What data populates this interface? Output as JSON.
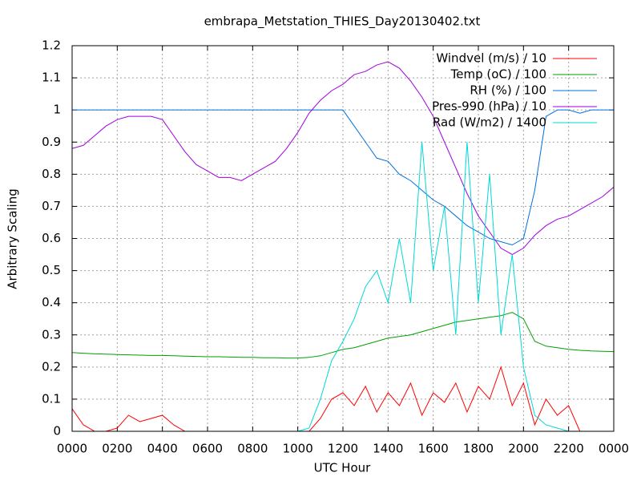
{
  "chart_data": {
    "type": "line",
    "title": "embrapa_Metstation_THIES_Day20130402.txt",
    "xlabel": "UTC Hour",
    "ylabel": "Arbitrary Scaling",
    "x": [
      0,
      0.5,
      1,
      1.5,
      2,
      2.5,
      3,
      3.5,
      4,
      4.5,
      5,
      5.5,
      6,
      6.5,
      7,
      7.5,
      8,
      8.5,
      9,
      9.5,
      10,
      10.5,
      11,
      11.5,
      12,
      12.5,
      13,
      13.5,
      14,
      14.5,
      15,
      15.5,
      16,
      16.5,
      17,
      17.5,
      18,
      18.5,
      19,
      19.5,
      20,
      20.5,
      21,
      21.5,
      22,
      22.5,
      23,
      23.5,
      24
    ],
    "xlim": [
      0,
      24
    ],
    "xticks": [
      {
        "value": 0,
        "label": "0000"
      },
      {
        "value": 2,
        "label": "0200"
      },
      {
        "value": 4,
        "label": "0400"
      },
      {
        "value": 6,
        "label": "0600"
      },
      {
        "value": 8,
        "label": "0800"
      },
      {
        "value": 10,
        "label": "1000"
      },
      {
        "value": 12,
        "label": "1200"
      },
      {
        "value": 14,
        "label": "1400"
      },
      {
        "value": 16,
        "label": "1600"
      },
      {
        "value": 18,
        "label": "1800"
      },
      {
        "value": 20,
        "label": "2000"
      },
      {
        "value": 22,
        "label": "2200"
      },
      {
        "value": 24,
        "label": "0000"
      }
    ],
    "ylim": [
      0,
      1.2
    ],
    "yticks": [
      0,
      0.1,
      0.2,
      0.3,
      0.4,
      0.5,
      0.6,
      0.7,
      0.8,
      0.9,
      1,
      1.1,
      1.2
    ],
    "grid": true,
    "legend": "top-right",
    "series": [
      {
        "name": "Windvel (m/s) / 10",
        "color": "#ff0000",
        "values": [
          0.07,
          0.02,
          0,
          0,
          0.01,
          0.05,
          0.03,
          0.04,
          0.05,
          0.02,
          0,
          0,
          0,
          0,
          0,
          0,
          0,
          0,
          0,
          0,
          0,
          0,
          0.04,
          0.1,
          0.12,
          0.08,
          0.14,
          0.06,
          0.12,
          0.08,
          0.15,
          0.05,
          0.12,
          0.09,
          0.15,
          0.06,
          0.14,
          0.1,
          0.2,
          0.08,
          0.15,
          0.02,
          0.1,
          0.05,
          0.08,
          0,
          0,
          0,
          0
        ]
      },
      {
        "name": "Temp (oC) / 100",
        "color": "#00a000",
        "values": [
          0.245,
          0.243,
          0.241,
          0.24,
          0.239,
          0.238,
          0.237,
          0.236,
          0.236,
          0.235,
          0.234,
          0.233,
          0.232,
          0.232,
          0.231,
          0.23,
          0.23,
          0.229,
          0.229,
          0.228,
          0.228,
          0.23,
          0.235,
          0.245,
          0.255,
          0.26,
          0.27,
          0.28,
          0.29,
          0.295,
          0.3,
          0.31,
          0.32,
          0.33,
          0.34,
          0.345,
          0.35,
          0.355,
          0.36,
          0.37,
          0.35,
          0.28,
          0.265,
          0.26,
          0.255,
          0.252,
          0.25,
          0.249,
          0.248
        ]
      },
      {
        "name": "RH (%) / 100",
        "color": "#0070e0",
        "values": [
          1,
          1,
          1,
          1,
          1,
          1,
          1,
          1,
          1,
          1,
          1,
          1,
          1,
          1,
          1,
          1,
          1,
          1,
          1,
          1,
          1,
          1,
          1,
          1,
          1,
          0.95,
          0.9,
          0.85,
          0.84,
          0.8,
          0.78,
          0.75,
          0.72,
          0.7,
          0.67,
          0.64,
          0.62,
          0.6,
          0.59,
          0.58,
          0.6,
          0.75,
          0.98,
          1,
          1,
          0.99,
          1,
          1,
          1
        ]
      },
      {
        "name": "Pres-990 (hPa) / 10",
        "color": "#a000e0",
        "values": [
          0.88,
          0.89,
          0.92,
          0.95,
          0.97,
          0.98,
          0.98,
          0.98,
          0.97,
          0.92,
          0.87,
          0.83,
          0.81,
          0.79,
          0.79,
          0.78,
          0.8,
          0.82,
          0.84,
          0.88,
          0.93,
          0.99,
          1.03,
          1.06,
          1.08,
          1.11,
          1.12,
          1.14,
          1.15,
          1.13,
          1.09,
          1.04,
          0.98,
          0.9,
          0.82,
          0.74,
          0.67,
          0.62,
          0.57,
          0.55,
          0.57,
          0.61,
          0.64,
          0.66,
          0.67,
          0.69,
          0.71,
          0.73,
          0.76
        ]
      },
      {
        "name": "Rad (W/m2) / 1400",
        "color": "#00d8d8",
        "values": [
          0,
          0,
          0,
          0,
          0,
          0,
          0,
          0,
          0,
          0,
          0,
          0,
          0,
          0,
          0,
          0,
          0,
          0,
          0,
          0,
          0,
          0.01,
          0.1,
          0.22,
          0.28,
          0.35,
          0.45,
          0.5,
          0.4,
          0.6,
          0.4,
          0.9,
          0.5,
          0.7,
          0.3,
          0.9,
          0.4,
          0.8,
          0.3,
          0.55,
          0.2,
          0.05,
          0.02,
          0.01,
          0,
          0,
          0,
          0,
          0
        ]
      }
    ]
  }
}
